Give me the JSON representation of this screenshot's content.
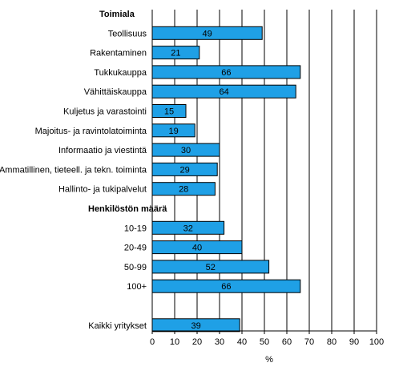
{
  "chart_data": {
    "type": "bar",
    "orientation": "horizontal",
    "xlabel": "%",
    "xlim": [
      0,
      100
    ],
    "xticks": [
      0,
      10,
      20,
      30,
      40,
      50,
      60,
      70,
      80,
      90,
      100
    ],
    "grid": "vertical",
    "bar_color": "#1fa0e6",
    "rows": [
      {
        "kind": "group",
        "label": "Toimiala"
      },
      {
        "kind": "bar",
        "label": "Teollisuus",
        "value": 49
      },
      {
        "kind": "bar",
        "label": "Rakentaminen",
        "value": 21
      },
      {
        "kind": "bar",
        "label": "Tukkukauppa",
        "value": 66
      },
      {
        "kind": "bar",
        "label": "Vähittäiskauppa",
        "value": 64
      },
      {
        "kind": "bar",
        "label": "Kuljetus ja varastointi",
        "value": 15
      },
      {
        "kind": "bar",
        "label": "Majoitus- ja ravintolatoiminta",
        "value": 19
      },
      {
        "kind": "bar",
        "label": "Informaatio ja viestintä",
        "value": 30
      },
      {
        "kind": "bar",
        "label": "Ammatillinen, tieteell. ja tekn. toiminta",
        "value": 29
      },
      {
        "kind": "bar",
        "label": "Hallinto- ja tukipalvelut",
        "value": 28
      },
      {
        "kind": "group",
        "label": "Henkilöstön määrä"
      },
      {
        "kind": "bar",
        "label": "10-19",
        "value": 32
      },
      {
        "kind": "bar",
        "label": "20-49",
        "value": 40
      },
      {
        "kind": "bar",
        "label": "50-99",
        "value": 52
      },
      {
        "kind": "bar",
        "label": "100+",
        "value": 66
      },
      {
        "kind": "blank",
        "label": ""
      },
      {
        "kind": "bar",
        "label": "Kaikki yritykset",
        "value": 39
      }
    ]
  }
}
